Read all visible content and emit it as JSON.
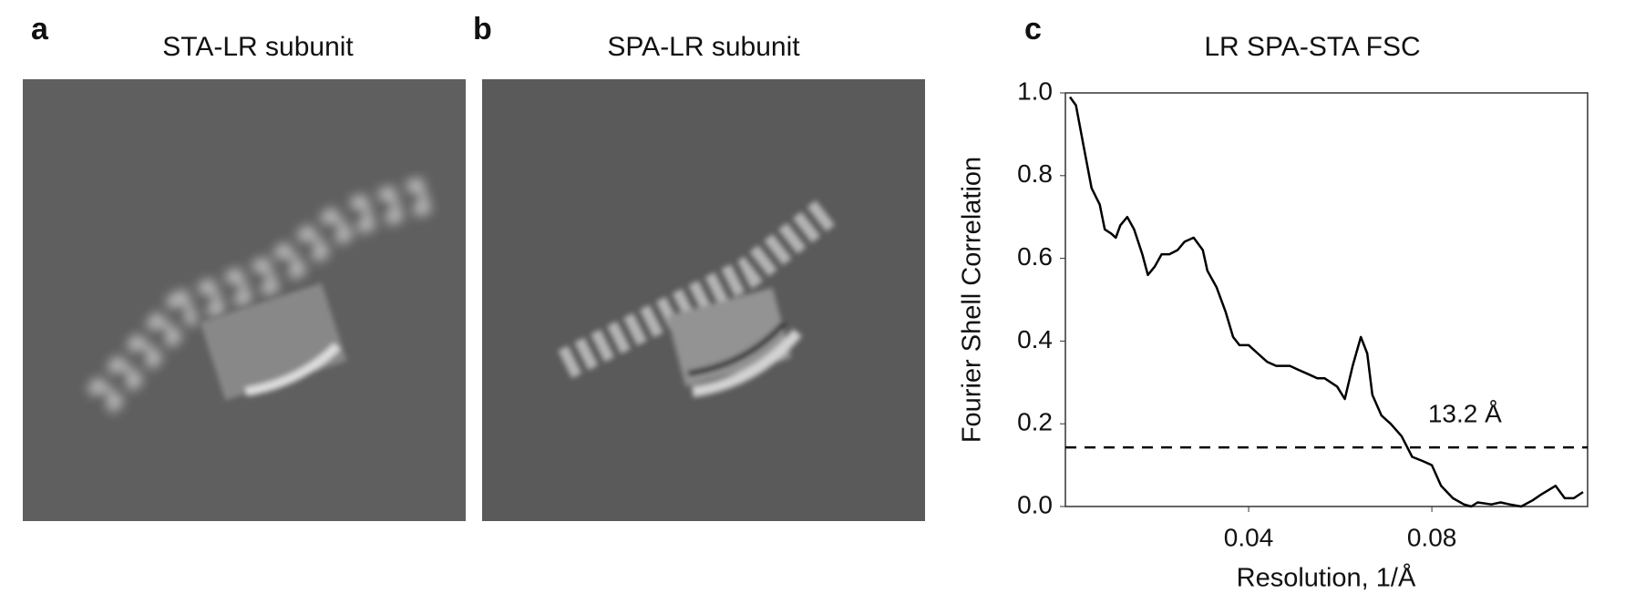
{
  "panels": [
    {
      "label": "a",
      "title": "STA-LR subunit"
    },
    {
      "label": "b",
      "title": "SPA-LR subunit"
    }
  ],
  "chart_data": {
    "type": "line",
    "panel_label": "c",
    "title": "LR SPA-STA FSC",
    "x_label": "Resolution, 1/Å",
    "y_label": "Fourier Shell Correlation",
    "x": [
      0.001,
      0.0023,
      0.004,
      0.0057,
      0.0075,
      0.0086,
      0.01,
      0.011,
      0.012,
      0.0135,
      0.015,
      0.0168,
      0.018,
      0.0195,
      0.021,
      0.0227,
      0.0245,
      0.026,
      0.028,
      0.03,
      0.031,
      0.033,
      0.035,
      0.0366,
      0.038,
      0.04,
      0.042,
      0.044,
      0.046,
      0.049,
      0.051,
      0.053,
      0.055,
      0.0566,
      0.0593,
      0.061,
      0.0627,
      0.0645,
      0.0659,
      0.067,
      0.069,
      0.071,
      0.0734,
      0.0757,
      0.078,
      0.08,
      0.082,
      0.0846,
      0.087,
      0.0886,
      0.09,
      0.093,
      0.095,
      0.097,
      0.0995,
      0.102,
      0.104,
      0.107,
      0.109,
      0.111,
      0.113
    ],
    "values": [
      0.99,
      0.97,
      0.87,
      0.77,
      0.73,
      0.67,
      0.66,
      0.65,
      0.68,
      0.7,
      0.67,
      0.61,
      0.56,
      0.58,
      0.61,
      0.61,
      0.62,
      0.64,
      0.65,
      0.62,
      0.57,
      0.53,
      0.47,
      0.41,
      0.39,
      0.39,
      0.37,
      0.35,
      0.34,
      0.34,
      0.33,
      0.32,
      0.31,
      0.31,
      0.29,
      0.26,
      0.34,
      0.41,
      0.37,
      0.27,
      0.22,
      0.2,
      0.17,
      0.12,
      0.11,
      0.1,
      0.05,
      0.02,
      0.005,
      0,
      0.01,
      0.005,
      0.01,
      0.005,
      0,
      0.015,
      0.03,
      0.05,
      0.02,
      0.02,
      0.035
    ],
    "color": "#000000",
    "threshold": 0.143,
    "threshold_label": "13.2 Å",
    "xlim": [
      0,
      0.114
    ],
    "ylim": [
      0,
      1
    ],
    "xticks": [
      0.04,
      0.08
    ],
    "yticks": [
      {
        "value": 0,
        "label": "0.0"
      },
      0.2,
      0.4,
      0.6,
      0.8,
      {
        "value": 1,
        "label": "1.0"
      }
    ]
  }
}
